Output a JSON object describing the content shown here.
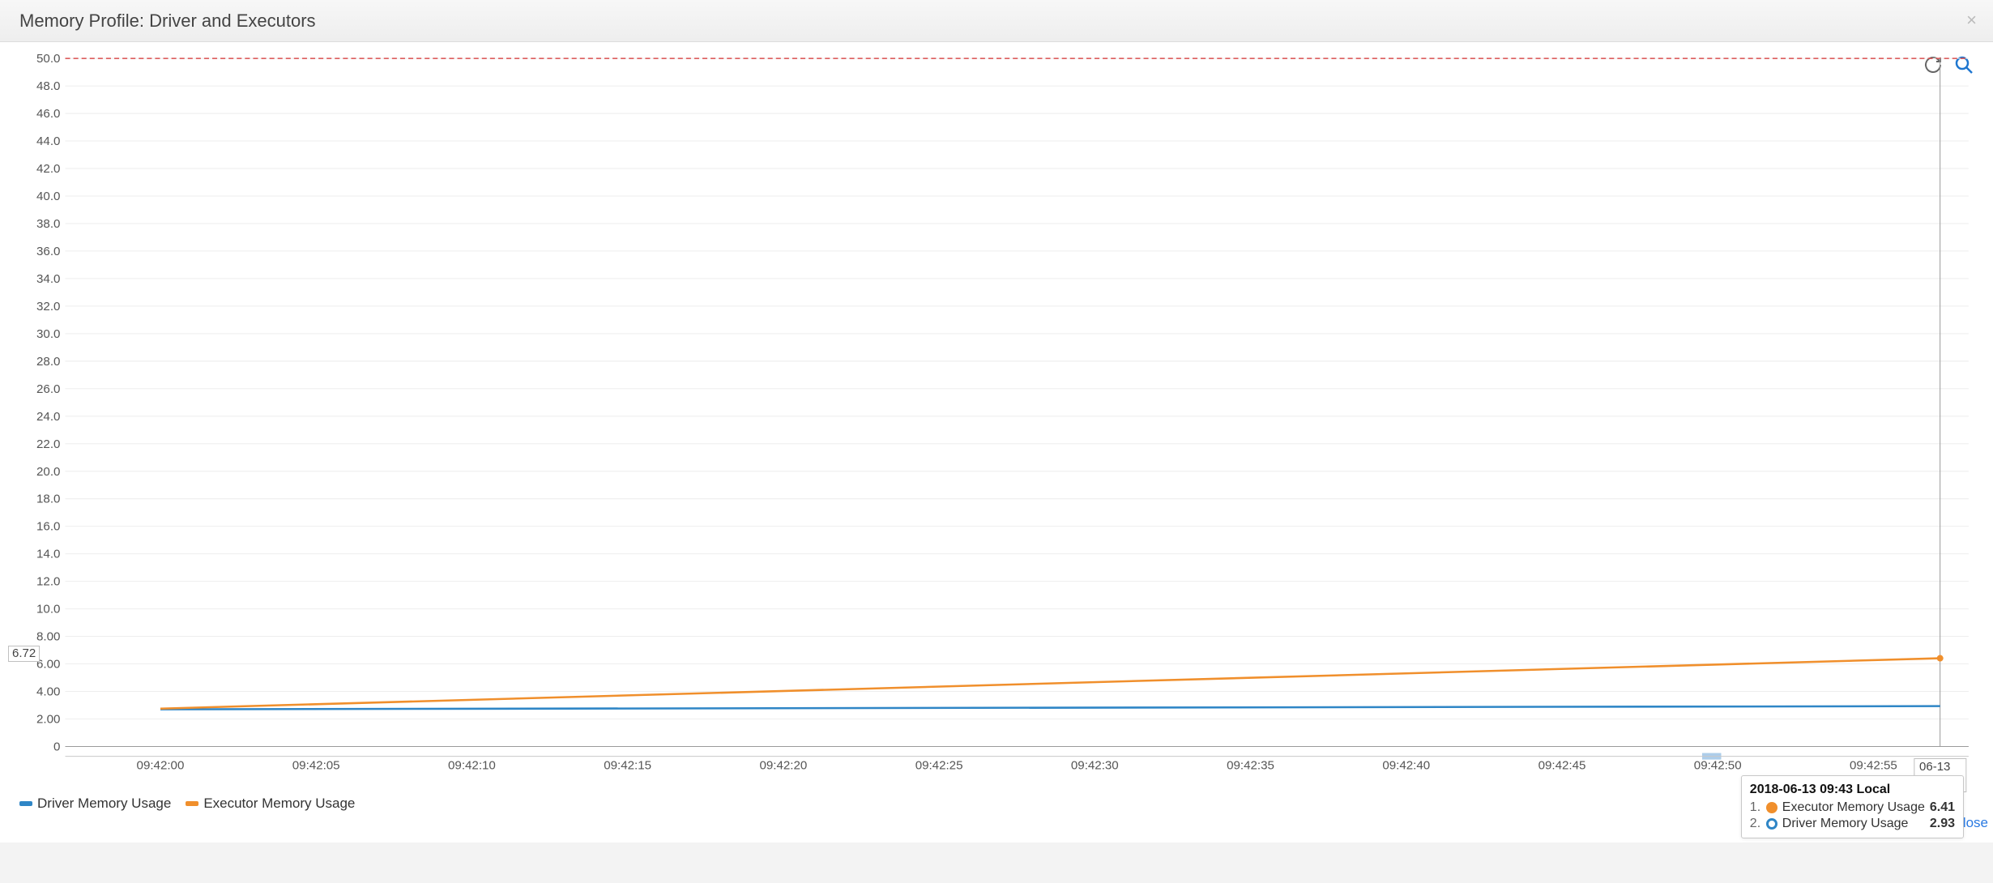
{
  "header": {
    "title": "Memory Profile: Driver and Executors"
  },
  "chart": {
    "type": "line",
    "background_color": "#ffffff",
    "grid_color": "#e9e9e9",
    "axis_color": "#9a9a9a",
    "tick_font_size": 15,
    "tick_color": "#555555",
    "y": {
      "min": 0,
      "max": 50,
      "step": 2.0,
      "threshold_value": 50.0,
      "threshold_color": "#d94e4e",
      "callout_value": "6.72"
    },
    "x": {
      "ticks": [
        "09:42:00",
        "09:42:05",
        "09:42:10",
        "09:42:15",
        "09:42:20",
        "09:42:25",
        "09:42:30",
        "09:42:35",
        "09:42:40",
        "09:42:45",
        "09:42:50",
        "09:42:55"
      ],
      "callout_label": "06-13 09:43"
    },
    "series": [
      {
        "name": "Driver Memory Usage",
        "color": "#2f86c6",
        "values": [
          2.7,
          2.93
        ]
      },
      {
        "name": "Executor Memory Usage",
        "color": "#f08f2c",
        "values": [
          2.75,
          6.41
        ]
      }
    ],
    "x_positions_pct": [
      5.0,
      98.5
    ],
    "hover_line_pct": 98.5,
    "brush_region_pct": [
      86.0,
      87.0
    ],
    "brush_color": "#5b9bd5"
  },
  "legend": {
    "items": [
      {
        "label": "Driver Memory Usage",
        "color": "#2f86c6"
      },
      {
        "label": "Executor Memory Usage",
        "color": "#f08f2c"
      }
    ]
  },
  "tooltip": {
    "title": "2018-06-13 09:43 Local",
    "rows": [
      {
        "idx": "1.",
        "label": "Executor Memory Usage",
        "value": "6.41",
        "color": "#f08f2c",
        "marker": "filled"
      },
      {
        "idx": "2.",
        "label": "Driver Memory Usage",
        "value": "2.93",
        "color": "#2f86c6",
        "marker": "ring"
      }
    ]
  },
  "footer": {
    "close_label": "lose"
  }
}
